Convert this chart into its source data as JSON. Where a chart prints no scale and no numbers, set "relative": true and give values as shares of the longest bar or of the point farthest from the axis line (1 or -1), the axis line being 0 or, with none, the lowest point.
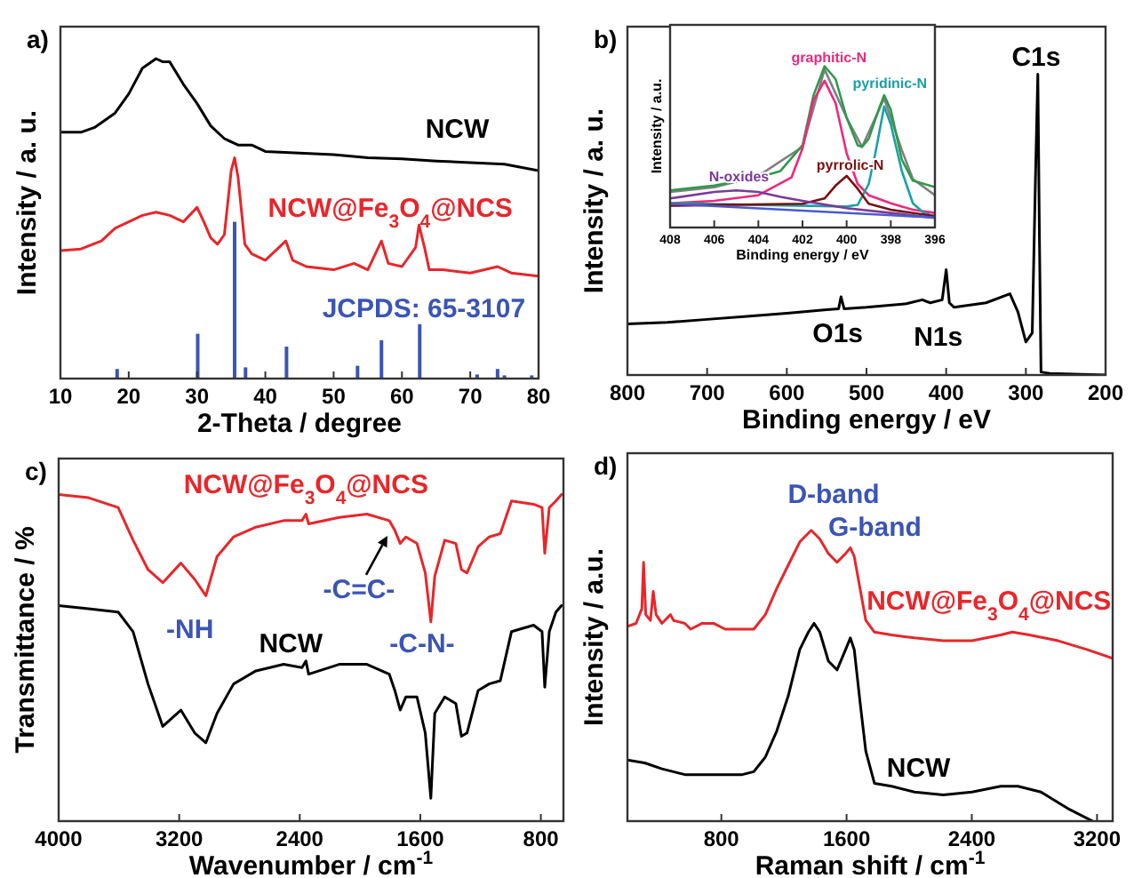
{
  "chart_data": [
    {
      "type": "line",
      "title": "a)",
      "xlabel": "2-Theta / degree",
      "ylabel": "Intensity / a. u.",
      "relative": true,
      "xlim": [
        10,
        80
      ],
      "xticks": [
        10,
        20,
        30,
        40,
        50,
        60,
        70,
        80
      ],
      "series": [
        {
          "name": "NCW",
          "color": "#000000",
          "x": [
            10,
            13,
            15,
            18,
            20,
            22,
            24,
            25,
            26,
            28,
            30,
            32,
            34,
            36,
            38,
            40,
            45,
            50,
            55,
            60,
            65,
            70,
            75,
            80
          ],
          "values": [
            0.77,
            0.77,
            0.785,
            0.83,
            0.89,
            0.97,
            1.0,
            0.99,
            0.99,
            0.92,
            0.86,
            0.79,
            0.75,
            0.73,
            0.73,
            0.71,
            0.705,
            0.7,
            0.69,
            0.687,
            0.68,
            0.675,
            0.67,
            0.65
          ]
        },
        {
          "name": "NCW@Fe$_{3}$O$_{4}$@NCS",
          "color": "#e8262a",
          "x": [
            10,
            13,
            16,
            18,
            20,
            22,
            24,
            26,
            28,
            30,
            31,
            32,
            33,
            34,
            35,
            35.5,
            36,
            37,
            38,
            40,
            43,
            44,
            46,
            50,
            53,
            55,
            57,
            58,
            60,
            62,
            62.5,
            63.3,
            64,
            66,
            70,
            74,
            76,
            80
          ],
          "values": [
            0.4,
            0.405,
            0.43,
            0.47,
            0.49,
            0.51,
            0.52,
            0.51,
            0.49,
            0.535,
            0.49,
            0.44,
            0.42,
            0.45,
            0.65,
            0.69,
            0.63,
            0.42,
            0.39,
            0.37,
            0.43,
            0.37,
            0.35,
            0.34,
            0.36,
            0.34,
            0.43,
            0.36,
            0.35,
            0.41,
            0.48,
            0.41,
            0.34,
            0.34,
            0.33,
            0.35,
            0.33,
            0.32
          ]
        },
        {
          "name": "JCPDS: 65-3107",
          "type": "bar",
          "color": "#3b55b5",
          "x": [
            18.3,
            30.1,
            35.5,
            37.1,
            43.1,
            53.5,
            57,
            62.6,
            71,
            74,
            75,
            79
          ],
          "values": [
            0.03,
            0.14,
            0.49,
            0.035,
            0.1,
            0.04,
            0.12,
            0.17,
            0.013,
            0.03,
            0.01,
            0.01
          ]
        }
      ]
    },
    {
      "type": "line",
      "title": "b)",
      "xlabel": "Binding energy / eV",
      "ylabel": "Intensity / a. u.",
      "relative": true,
      "xlim": [
        800,
        200
      ],
      "xticks": [
        800,
        700,
        600,
        500,
        400,
        300,
        200
      ],
      "series": [
        {
          "color": "#000000",
          "x": [
            800,
            750,
            700,
            650,
            600,
            550,
            535,
            532,
            528,
            500,
            450,
            430,
            420,
            405,
            400,
            396,
            390,
            350,
            320,
            310,
            300,
            292,
            288,
            285,
            283,
            281,
            270,
            200
          ],
          "values": [
            0.17,
            0.175,
            0.185,
            0.195,
            0.205,
            0.217,
            0.22,
            0.26,
            0.22,
            0.225,
            0.237,
            0.25,
            0.24,
            0.25,
            0.35,
            0.24,
            0.225,
            0.24,
            0.27,
            0.21,
            0.11,
            0.14,
            0.65,
            1.0,
            0.46,
            0.01,
            0.005,
            0.0
          ]
        }
      ],
      "annotations": [
        "C1s",
        "O1s",
        "N1s"
      ]
    },
    {
      "type": "line",
      "xlabel": "Binding energy / eV",
      "ylabel": "Intensity / a.u.",
      "relative": true,
      "xlim": [
        408,
        396
      ],
      "xticks": [
        408,
        406,
        404,
        402,
        400,
        398,
        396
      ],
      "series": [
        {
          "color": "#808080",
          "x": [
            408,
            406,
            404,
            402,
            401,
            400,
            399.3,
            398.3,
            397.5,
            397,
            396
          ],
          "values": [
            0.22,
            0.25,
            0.32,
            0.5,
            0.98,
            0.68,
            0.5,
            0.8,
            0.48,
            0.3,
            0.2
          ]
        },
        {
          "color": "#2e9a4a",
          "x": [
            408,
            406,
            404,
            403,
            402,
            401.5,
            401,
            400.5,
            400,
            399.5,
            399.3,
            399,
            398.5,
            398.3,
            398,
            397.5,
            397,
            396
          ],
          "values": [
            0.23,
            0.26,
            0.31,
            0.35,
            0.51,
            0.82,
            1.0,
            0.92,
            0.68,
            0.51,
            0.5,
            0.55,
            0.75,
            0.82,
            0.73,
            0.42,
            0.29,
            0.25
          ]
        },
        {
          "name": "graphitic-N",
          "color": "#f0287a",
          "x": [
            408,
            406,
            404,
            402.5,
            402,
            401.5,
            401,
            400.5,
            400,
            399.5,
            399,
            398,
            397,
            396
          ],
          "values": [
            0.15,
            0.165,
            0.2,
            0.31,
            0.49,
            0.79,
            0.91,
            0.77,
            0.46,
            0.27,
            0.2,
            0.15,
            0.11,
            0.09
          ]
        },
        {
          "name": "pyridinic-N",
          "color": "#1aa0a8",
          "x": [
            408,
            404,
            400,
            399.5,
            399,
            398.7,
            398.3,
            398,
            397.5,
            397,
            396.5,
            396
          ],
          "values": [
            0.15,
            0.14,
            0.13,
            0.14,
            0.27,
            0.46,
            0.75,
            0.64,
            0.35,
            0.15,
            0.09,
            0.07
          ]
        },
        {
          "name": "pyrrolic-N",
          "color": "#7a1010",
          "x": [
            408,
            402,
            401,
            400.5,
            400,
            399.5,
            399,
            398,
            396
          ],
          "values": [
            0.135,
            0.147,
            0.18,
            0.26,
            0.32,
            0.24,
            0.147,
            0.11,
            0.07
          ]
        },
        {
          "name": "N-oxides",
          "color": "#7a3a9a",
          "x": [
            408,
            406,
            405,
            404,
            403,
            402,
            400,
            398,
            396
          ],
          "values": [
            0.18,
            0.22,
            0.23,
            0.22,
            0.19,
            0.165,
            0.12,
            0.09,
            0.06
          ]
        },
        {
          "color": "#4a5ad0",
          "x": [
            408,
            396
          ],
          "values": [
            0.147,
            0.062
          ]
        }
      ]
    },
    {
      "type": "line",
      "title": "c)",
      "xlabel": "Wavenumber / cm$^{-1}$",
      "ylabel": "Transmittance / %",
      "relative": true,
      "xlim": [
        4000,
        650
      ],
      "xticks": [
        4000,
        3200,
        2400,
        1600,
        800
      ],
      "series": [
        {
          "name": "NCW@Fe$_{3}$O$_{4}$@NCS",
          "color": "#e8262a",
          "x": [
            4000,
            3802,
            3605,
            3506,
            3407,
            3309,
            3189,
            3097,
            3023,
            2949,
            2839,
            2691,
            2507,
            2385,
            2359,
            2341,
            2138,
            1954,
            1806,
            1769,
            1733,
            1696,
            1622,
            1567,
            1530,
            1504,
            1438,
            1364,
            1327,
            1290,
            1216,
            1143,
            1069,
            995,
            848,
            792,
            774,
            744,
            700,
            663
          ],
          "values": [
            1.0,
            0.99,
            0.96,
            0.86,
            0.77,
            0.73,
            0.79,
            0.74,
            0.69,
            0.81,
            0.87,
            0.9,
            0.92,
            0.92,
            0.94,
            0.91,
            0.93,
            0.94,
            0.92,
            0.89,
            0.85,
            0.87,
            0.85,
            0.76,
            0.61,
            0.75,
            0.86,
            0.85,
            0.77,
            0.76,
            0.84,
            0.87,
            0.88,
            0.98,
            0.97,
            0.96,
            0.82,
            0.96,
            0.98,
            1.0
          ]
        },
        {
          "name": "NCW",
          "color": "#000000",
          "x": [
            4000,
            3802,
            3605,
            3506,
            3407,
            3309,
            3189,
            3097,
            3023,
            2949,
            2839,
            2691,
            2507,
            2385,
            2359,
            2341,
            2138,
            1954,
            1806,
            1769,
            1733,
            1696,
            1622,
            1567,
            1530,
            1504,
            1438,
            1364,
            1327,
            1290,
            1216,
            1143,
            1069,
            995,
            848,
            792,
            774,
            744,
            700,
            663
          ],
          "values": [
            0.66,
            0.65,
            0.64,
            0.58,
            0.42,
            0.29,
            0.34,
            0.27,
            0.24,
            0.33,
            0.42,
            0.46,
            0.48,
            0.47,
            0.49,
            0.45,
            0.48,
            0.48,
            0.45,
            0.4,
            0.34,
            0.38,
            0.38,
            0.27,
            0.07,
            0.33,
            0.38,
            0.36,
            0.26,
            0.27,
            0.4,
            0.42,
            0.43,
            0.58,
            0.6,
            0.58,
            0.41,
            0.58,
            0.64,
            0.66
          ]
        }
      ],
      "annotations": [
        "-NH",
        "-C=C-",
        "-C-N-"
      ]
    },
    {
      "type": "line",
      "title": "d)",
      "xlabel": "Raman shift / cm$^{-1}$",
      "ylabel": "Intensity / a.u.",
      "relative": true,
      "xlim": [
        200,
        3300
      ],
      "xticks": [
        800,
        1600,
        2400,
        3200
      ],
      "series": [
        {
          "name": "NCW@Fe$_{3}$O$_{4}$@NCS",
          "color": "#e8262a",
          "x": [
            200,
            255,
            292,
            303,
            317,
            347,
            365,
            383,
            420,
            475,
            494,
            567,
            604,
            677,
            750,
            824,
            934,
            1007,
            1081,
            1154,
            1227,
            1301,
            1374,
            1429,
            1484,
            1539,
            1594,
            1624,
            1649,
            1686,
            1723,
            1778,
            1888,
            2034,
            2218,
            2401,
            2585,
            2658,
            2768,
            2952,
            3135,
            3300
          ],
          "values": [
            0.67,
            0.68,
            0.73,
            0.89,
            0.71,
            0.69,
            0.79,
            0.71,
            0.68,
            0.71,
            0.69,
            0.68,
            0.66,
            0.68,
            0.68,
            0.66,
            0.66,
            0.66,
            0.71,
            0.8,
            0.88,
            0.96,
            1.0,
            0.97,
            0.92,
            0.89,
            0.92,
            0.94,
            0.91,
            0.8,
            0.69,
            0.65,
            0.64,
            0.63,
            0.62,
            0.62,
            0.64,
            0.65,
            0.64,
            0.62,
            0.59,
            0.56
          ]
        },
        {
          "name": "NCW",
          "color": "#000000",
          "x": [
            200,
            310,
            420,
            567,
            750,
            934,
            1007,
            1081,
            1154,
            1227,
            1301,
            1356,
            1392,
            1429,
            1484,
            1539,
            1594,
            1624,
            1649,
            1686,
            1723,
            1778,
            1888,
            2034,
            2218,
            2401,
            2585,
            2695,
            2842,
            3025,
            3172
          ],
          "values": [
            0.21,
            0.2,
            0.18,
            0.16,
            0.16,
            0.16,
            0.17,
            0.22,
            0.31,
            0.43,
            0.59,
            0.65,
            0.68,
            0.65,
            0.55,
            0.52,
            0.59,
            0.63,
            0.59,
            0.41,
            0.24,
            0.13,
            0.12,
            0.1,
            0.09,
            0.1,
            0.12,
            0.12,
            0.1,
            0.04,
            0.0
          ]
        }
      ],
      "annotations": [
        "D-band",
        "G-band"
      ]
    }
  ]
}
